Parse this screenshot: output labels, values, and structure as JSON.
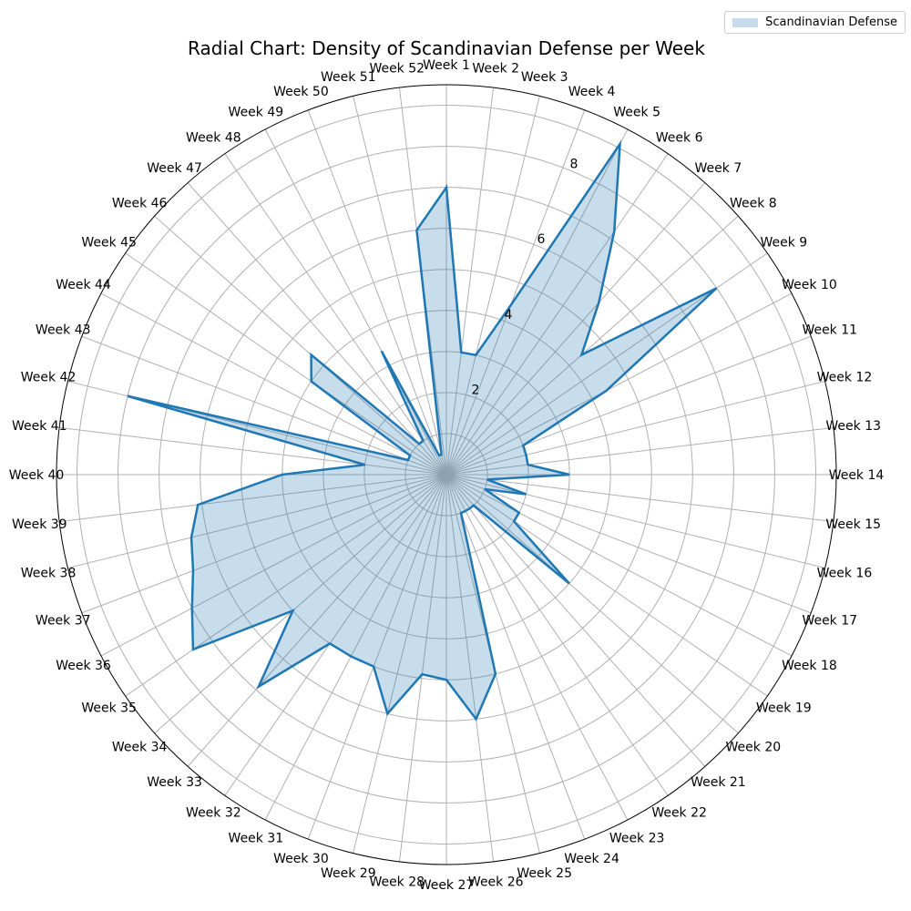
{
  "chart_data": {
    "type": "radar",
    "title": "Radial Chart: Density of Scandinavian Defense per Week",
    "categories": [
      "Week 1",
      "Week 2",
      "Week 3",
      "Week 4",
      "Week 5",
      "Week 6",
      "Week 7",
      "Week 8",
      "Week 9",
      "Week 10",
      "Week 11",
      "Week 12",
      "Week 13",
      "Week 14",
      "Week 15",
      "Week 16",
      "Week 17",
      "Week 18",
      "Week 19",
      "Week 20",
      "Week 21",
      "Week 22",
      "Week 23",
      "Week 24",
      "Week 25",
      "Week 26",
      "Week 27",
      "Week 28",
      "Week 29",
      "Week 30",
      "Week 31",
      "Week 32",
      "Week 33",
      "Week 34",
      "Week 35",
      "Week 36",
      "Week 37",
      "Week 38",
      "Week 39",
      "Week 40",
      "Week 41",
      "Week 42",
      "Week 43",
      "Week 44",
      "Week 45",
      "Week 46",
      "Week 47",
      "Week 48",
      "Week 49",
      "Week 50",
      "Week 51",
      "Week 52"
    ],
    "series": [
      {
        "name": "Scandinavian Defense",
        "values": [
          7.0,
          3.0,
          3.0,
          4.4,
          9.1,
          7.2,
          5.6,
          4.4,
          8.0,
          4.4,
          2.0,
          2.0,
          2.0,
          3.0,
          1.0,
          2.0,
          1.0,
          2.0,
          2.0,
          4.0,
          1.0,
          1.0,
          1.0,
          1.0,
          5.0,
          6.0,
          5.0,
          4.9,
          6.0,
          5.0,
          5.0,
          5.0,
          6.9,
          5.0,
          7.5,
          7.0,
          6.6,
          6.4,
          6.1,
          4.0,
          2.0,
          8.0,
          1.0,
          1.0,
          4.0,
          4.4,
          1.0,
          1.0,
          3.4,
          0.5,
          0.5,
          6.0
        ]
      }
    ],
    "rticks": [
      "2",
      "4",
      "6",
      "8"
    ],
    "rlim": [
      0,
      9.5
    ],
    "line_color": "#1f77b4",
    "fill_color": "#1f77b4",
    "legend": {
      "label": "Scandinavian Defense",
      "placement": "top-right"
    },
    "grid": true
  }
}
